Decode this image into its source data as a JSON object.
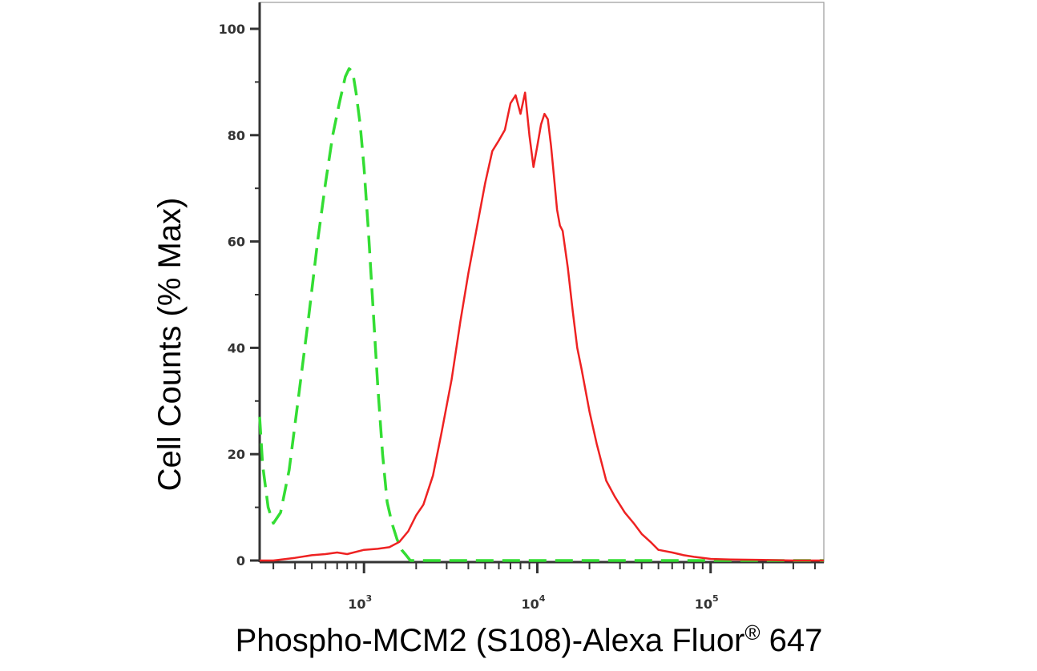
{
  "chart_data": {
    "type": "line",
    "title": "",
    "xlabel": "Phospho-MCM2 (S108)-Alexa Fluor",
    "xlabel_mark": "®",
    "xlabel_suffix": " 647",
    "ylabel": "Cell Counts (% Max)",
    "x_scale": "log",
    "xlim": [
      250,
      450000
    ],
    "ylim": [
      0,
      100
    ],
    "y_ticks": [
      0,
      20,
      40,
      60,
      80,
      100
    ],
    "y_tick_labels": [
      "0",
      "20",
      "40",
      "60",
      "80",
      "100"
    ],
    "x_major_ticks": [
      1000,
      10000,
      100000
    ],
    "x_tick_labels": [
      {
        "base": "10",
        "exp": "3"
      },
      {
        "base": "10",
        "exp": "4"
      },
      {
        "base": "10",
        "exp": "5"
      }
    ],
    "grid": false,
    "legend": "none",
    "series": [
      {
        "color": "#33dd33",
        "style": "dashed",
        "x": [
          250,
          260,
          280,
          300,
          330,
          370,
          420,
          480,
          540,
          600,
          660,
          720,
          780,
          820,
          860,
          900,
          950,
          1000,
          1060,
          1130,
          1200,
          1280,
          1360,
          1450,
          1550,
          1650,
          1750,
          1850,
          2000,
          2500,
          3000,
          5000,
          10000,
          20000,
          50000,
          100000,
          200000,
          450000
        ],
        "y": [
          27,
          18,
          10,
          7,
          9,
          17,
          31,
          46,
          60,
          71,
          80,
          86,
          91,
          92.5,
          92,
          88,
          82,
          74,
          62,
          47,
          33,
          20,
          11,
          7,
          4,
          2,
          1,
          0,
          0,
          0,
          0,
          0,
          0,
          0,
          0,
          0,
          0,
          0
        ]
      },
      {
        "color": "#ee2222",
        "style": "solid",
        "x": [
          250,
          300,
          400,
          500,
          600,
          700,
          800,
          1000,
          1200,
          1400,
          1600,
          1800,
          2000,
          2200,
          2500,
          2800,
          3200,
          3600,
          4000,
          4500,
          5000,
          5500,
          6000,
          6500,
          7000,
          7500,
          8000,
          8500,
          9000,
          9500,
          10000,
          10500,
          11000,
          11500,
          12000,
          12500,
          13000,
          13500,
          14000,
          15000,
          16000,
          17000,
          18000,
          20000,
          22000,
          25000,
          28000,
          32000,
          36000,
          40000,
          45000,
          50000,
          60000,
          70000,
          80000,
          90000,
          100000,
          130000,
          200000,
          300000,
          450000
        ],
        "y": [
          0,
          0,
          0.5,
          1,
          1.2,
          1.5,
          1.2,
          2,
          2.2,
          2.5,
          3.5,
          5.5,
          8.5,
          10.5,
          16,
          24,
          34,
          45,
          54,
          63,
          71,
          77,
          79,
          81,
          86,
          87.5,
          84,
          88,
          80,
          74,
          78,
          82,
          84,
          83,
          78,
          72,
          66,
          63,
          62,
          55,
          47,
          40,
          36,
          28,
          22,
          15,
          12,
          9,
          7,
          5,
          3.5,
          2,
          1.5,
          1,
          0.7,
          0.5,
          0.3,
          0.2,
          0.1,
          0,
          0
        ]
      }
    ]
  },
  "colors": {
    "axis": "#333333",
    "frame": "#999999"
  }
}
